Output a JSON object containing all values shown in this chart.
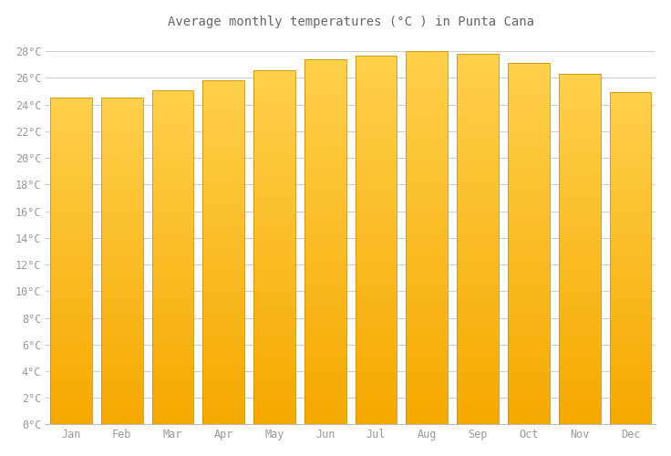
{
  "title": "Average monthly temperatures (°C ) in Punta Cana",
  "months": [
    "Jan",
    "Feb",
    "Mar",
    "Apr",
    "May",
    "Jun",
    "Jul",
    "Aug",
    "Sep",
    "Oct",
    "Nov",
    "Dec"
  ],
  "values": [
    24.5,
    24.5,
    25.1,
    25.8,
    26.6,
    27.4,
    27.7,
    28.0,
    27.8,
    27.1,
    26.3,
    24.9
  ],
  "ylim": [
    0,
    29
  ],
  "yticks": [
    0,
    2,
    4,
    6,
    8,
    10,
    12,
    14,
    16,
    18,
    20,
    22,
    24,
    26,
    28
  ],
  "bar_color_top": "#FFD04C",
  "bar_color_bottom": "#F5A800",
  "bar_edge_color": "#D4920A",
  "background_color": "#FFFFFF",
  "grid_color": "#CCCCCC",
  "title_fontsize": 10,
  "tick_fontsize": 8.5,
  "tick_color": "#999999",
  "font_family": "monospace"
}
